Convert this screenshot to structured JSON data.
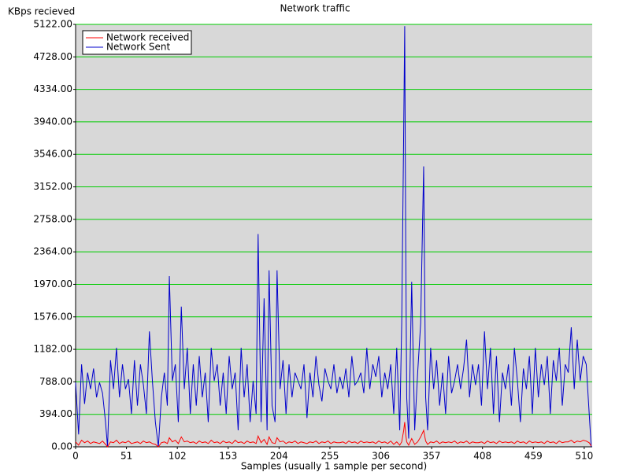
{
  "chart_data": {
    "type": "line",
    "title": "Network traffic",
    "y_label": "KBps recieved",
    "x_label": "Samples (usually 1 sample per second)",
    "x": [
      0,
      3,
      6,
      9,
      12,
      15,
      18,
      21,
      24,
      27,
      30,
      32,
      35,
      38,
      41,
      44,
      47,
      50,
      53,
      56,
      59,
      62,
      65,
      68,
      71,
      74,
      77,
      80,
      83,
      86,
      89,
      92,
      94,
      97,
      100,
      103,
      106,
      109,
      112,
      115,
      118,
      121,
      124,
      127,
      130,
      133,
      136,
      139,
      142,
      145,
      148,
      151,
      154,
      157,
      160,
      163,
      166,
      169,
      172,
      175,
      178,
      181,
      183,
      186,
      189,
      192,
      194,
      197,
      200,
      202,
      205,
      208,
      211,
      214,
      217,
      220,
      223,
      226,
      229,
      232,
      235,
      238,
      241,
      244,
      247,
      250,
      253,
      256,
      259,
      262,
      265,
      268,
      271,
      274,
      277,
      280,
      283,
      286,
      289,
      292,
      295,
      298,
      301,
      304,
      307,
      310,
      313,
      316,
      319,
      322,
      325,
      327,
      329,
      330,
      331,
      332,
      334,
      337,
      340,
      343,
      346,
      349,
      351,
      353,
      356,
      359,
      362,
      365,
      368,
      371,
      374,
      377,
      380,
      383,
      386,
      389,
      392,
      395,
      398,
      401,
      404,
      407,
      410,
      413,
      416,
      419,
      422,
      425,
      428,
      431,
      434,
      437,
      440,
      443,
      446,
      449,
      452,
      455,
      458,
      461,
      464,
      467,
      470,
      473,
      476,
      479,
      482,
      485,
      488,
      491,
      494,
      497,
      500,
      503,
      506,
      509,
      512,
      515,
      517
    ],
    "series": [
      {
        "name": "Network received",
        "color": "#ff0000",
        "values": [
          60,
          20,
          80,
          50,
          70,
          40,
          60,
          50,
          40,
          70,
          30,
          0,
          60,
          50,
          80,
          40,
          60,
          50,
          70,
          40,
          50,
          60,
          40,
          70,
          50,
          60,
          40,
          30,
          0,
          50,
          60,
          40,
          110,
          60,
          80,
          40,
          120,
          60,
          70,
          50,
          60,
          40,
          70,
          50,
          60,
          40,
          80,
          50,
          60,
          40,
          70,
          50,
          60,
          40,
          80,
          50,
          60,
          40,
          70,
          50,
          60,
          40,
          130,
          50,
          90,
          30,
          120,
          50,
          40,
          110,
          60,
          70,
          40,
          60,
          50,
          70,
          40,
          60,
          50,
          40,
          60,
          50,
          70,
          40,
          60,
          50,
          70,
          40,
          60,
          50,
          50,
          60,
          40,
          70,
          50,
          60,
          40,
          70,
          50,
          60,
          50,
          60,
          40,
          70,
          50,
          60,
          40,
          70,
          30,
          60,
          20,
          60,
          200,
          300,
          150,
          60,
          20,
          100,
          30,
          60,
          120,
          200,
          70,
          30,
          60,
          50,
          70,
          40,
          60,
          50,
          60,
          50,
          70,
          40,
          60,
          50,
          70,
          40,
          60,
          50,
          50,
          60,
          40,
          70,
          50,
          60,
          40,
          70,
          50,
          60,
          50,
          60,
          40,
          70,
          50,
          60,
          40,
          70,
          50,
          60,
          50,
          60,
          40,
          70,
          50,
          60,
          40,
          70,
          50,
          60,
          60,
          80,
          50,
          70,
          60,
          80,
          70,
          50,
          10
        ]
      },
      {
        "name": "Network Sent",
        "color": "#0000cc",
        "values": [
          780,
          150,
          1000,
          520,
          900,
          700,
          950,
          600,
          780,
          650,
          300,
          0,
          1050,
          700,
          1200,
          600,
          1000,
          700,
          820,
          400,
          1050,
          500,
          1000,
          750,
          400,
          1400,
          800,
          300,
          0,
          600,
          900,
          500,
          2070,
          800,
          1000,
          300,
          1700,
          700,
          1200,
          400,
          1000,
          500,
          1100,
          600,
          900,
          300,
          1200,
          800,
          1000,
          500,
          900,
          400,
          1100,
          700,
          900,
          200,
          1200,
          600,
          1000,
          300,
          800,
          400,
          2580,
          300,
          1800,
          200,
          2140,
          500,
          300,
          2140,
          700,
          1050,
          400,
          1000,
          600,
          900,
          800,
          700,
          1000,
          350,
          900,
          600,
          1100,
          750,
          550,
          950,
          800,
          700,
          1000,
          650,
          850,
          700,
          950,
          600,
          1100,
          750,
          800,
          900,
          650,
          1200,
          700,
          1000,
          850,
          1100,
          600,
          900,
          700,
          1000,
          400,
          1200,
          200,
          1500,
          3850,
          5100,
          2500,
          600,
          100,
          2000,
          200,
          900,
          1500,
          3400,
          600,
          200,
          1200,
          700,
          1050,
          500,
          900,
          400,
          1100,
          650,
          800,
          1000,
          700,
          950,
          1300,
          600,
          1000,
          750,
          1000,
          500,
          1400,
          700,
          1200,
          400,
          1100,
          300,
          900,
          700,
          1000,
          500,
          1200,
          800,
          300,
          950,
          700,
          1100,
          400,
          1200,
          600,
          1000,
          750,
          1100,
          400,
          1050,
          800,
          1200,
          500,
          1000,
          900,
          1450,
          700,
          1300,
          800,
          1100,
          1000,
          400,
          0
        ]
      }
    ],
    "xlim": [
      0,
      518
    ],
    "xticks": [
      0,
      51,
      102,
      153,
      204,
      255,
      306,
      357,
      408,
      459,
      510
    ],
    "ylim": [
      0,
      5122
    ],
    "yticks": [
      {
        "value": 0,
        "label": "0.00"
      },
      {
        "value": 394,
        "label": "394.00"
      },
      {
        "value": 788,
        "label": "788.00"
      },
      {
        "value": 1182,
        "label": "1182.00"
      },
      {
        "value": 1576,
        "label": "1576.00"
      },
      {
        "value": 1970,
        "label": "1970.00"
      },
      {
        "value": 2364,
        "label": "2364.00"
      },
      {
        "value": 2758,
        "label": "2758.00"
      },
      {
        "value": 3152,
        "label": "3152.00"
      },
      {
        "value": 3546,
        "label": "3546.00"
      },
      {
        "value": 3940,
        "label": "3940.00"
      },
      {
        "value": 4334,
        "label": "4334.00"
      },
      {
        "value": 4728,
        "label": "4728.00"
      },
      {
        "value": 5122,
        "label": "5122.00"
      }
    ],
    "grid": true,
    "grid_color": "#00cc00",
    "plot_background": "#d8d8d8",
    "legend": "upper left"
  }
}
